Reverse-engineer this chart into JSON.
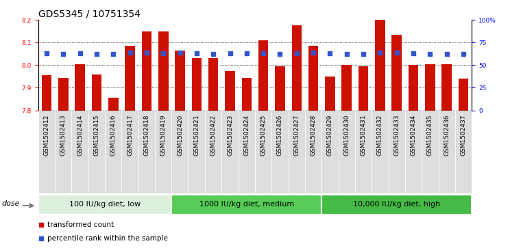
{
  "title": "GDS5345 / 10751354",
  "samples": [
    "GSM1502412",
    "GSM1502413",
    "GSM1502414",
    "GSM1502415",
    "GSM1502416",
    "GSM1502417",
    "GSM1502418",
    "GSM1502419",
    "GSM1502420",
    "GSM1502421",
    "GSM1502422",
    "GSM1502423",
    "GSM1502424",
    "GSM1502425",
    "GSM1502426",
    "GSM1502427",
    "GSM1502428",
    "GSM1502429",
    "GSM1502430",
    "GSM1502431",
    "GSM1502432",
    "GSM1502433",
    "GSM1502434",
    "GSM1502435",
    "GSM1502436",
    "GSM1502437"
  ],
  "bar_values": [
    7.955,
    7.945,
    8.005,
    7.96,
    7.855,
    8.085,
    8.15,
    8.15,
    8.065,
    8.03,
    8.03,
    7.975,
    7.945,
    8.11,
    7.995,
    8.175,
    8.085,
    7.95,
    8.0,
    7.995,
    8.2,
    8.135,
    8.0,
    8.005,
    8.005,
    7.94
  ],
  "percentile_values": [
    63,
    62,
    63,
    62,
    62,
    64,
    64,
    63,
    64,
    63,
    62,
    63,
    63,
    63,
    62,
    63,
    64,
    63,
    62,
    62,
    64,
    64,
    63,
    62,
    62,
    62
  ],
  "ylim_left": [
    7.8,
    8.2
  ],
  "ylim_right": [
    0,
    100
  ],
  "yticks_left": [
    7.8,
    7.9,
    8.0,
    8.1,
    8.2
  ],
  "yticks_right": [
    0,
    25,
    50,
    75,
    100
  ],
  "ytick_labels_right": [
    "0",
    "25",
    "50",
    "75",
    "100%"
  ],
  "bar_color": "#cc1100",
  "blue_color": "#3355cc",
  "bar_baseline": 7.8,
  "groups": [
    {
      "label": "100 IU/kg diet, low",
      "start": 0,
      "end": 8,
      "color": "#ddf0dd"
    },
    {
      "label": "1000 IU/kg diet, medium",
      "start": 8,
      "end": 17,
      "color": "#55cc55"
    },
    {
      "label": "10,000 IU/kg diet, high",
      "start": 17,
      "end": 26,
      "color": "#44bb44"
    }
  ],
  "dose_label": "dose",
  "legend_items": [
    {
      "label": "transformed count",
      "color": "#cc1100"
    },
    {
      "label": "percentile rank within the sample",
      "color": "#3355cc"
    }
  ],
  "background_color": "#ffffff",
  "title_fontsize": 10,
  "tick_fontsize": 6.5,
  "group_fontsize": 8,
  "label_bg_color": "#dddddd"
}
